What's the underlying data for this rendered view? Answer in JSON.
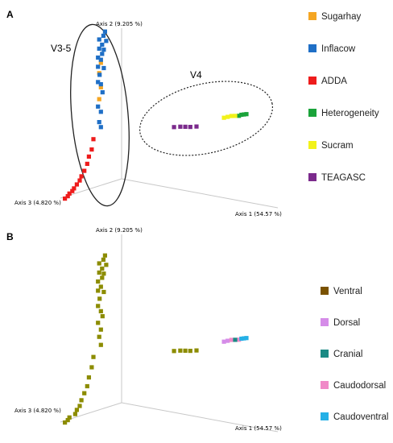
{
  "chart_data": [
    {
      "type": "scatter",
      "panel_label": "A",
      "axes": [
        "Axis 1 (54.57 %)",
        "Axis 2 (9.205 %)",
        "Axis 3 (4.820 %)"
      ],
      "group_labels": [
        "V3-5",
        "V4"
      ],
      "legend": [
        {
          "name": "Sugarhay",
          "color": "#f5a623"
        },
        {
          "name": "Inflacow",
          "color": "#1f6fc6"
        },
        {
          "name": "ADDA",
          "color": "#ee1c1c"
        },
        {
          "name": "Heterogeneity",
          "color": "#1aa33a"
        },
        {
          "name": "Sucram",
          "color": "#f2f21a"
        },
        {
          "name": "TEAGASC",
          "color": "#7b2a8c"
        }
      ],
      "series": [
        {
          "name": "Sugarhay",
          "points": [
            [
              -0.05,
              0.78,
              0.05
            ],
            [
              -0.04,
              0.72,
              0.06
            ],
            [
              -0.05,
              0.62,
              0.05
            ],
            [
              -0.04,
              0.55,
              0.06
            ]
          ]
        },
        {
          "name": "Inflacow",
          "points": [
            [
              -0.04,
              0.98,
              0.04
            ],
            [
              -0.03,
              0.96,
              0.05
            ],
            [
              -0.04,
              0.94,
              0.06
            ],
            [
              -0.03,
              0.92,
              0.04
            ],
            [
              -0.04,
              0.9,
              0.05
            ],
            [
              -0.04,
              0.88,
              0.06
            ],
            [
              -0.05,
              0.86,
              0.04
            ],
            [
              -0.04,
              0.84,
              0.05
            ],
            [
              -0.05,
              0.82,
              0.06
            ],
            [
              -0.05,
              0.8,
              0.05
            ],
            [
              -0.05,
              0.76,
              0.06
            ],
            [
              -0.05,
              0.74,
              0.04
            ],
            [
              -0.06,
              0.7,
              0.05
            ],
            [
              -0.05,
              0.66,
              0.06
            ],
            [
              -0.05,
              0.64,
              0.05
            ],
            [
              -0.06,
              0.58,
              0.04
            ],
            [
              -0.05,
              0.5,
              0.06
            ],
            [
              -0.05,
              0.46,
              0.05
            ],
            [
              -0.04,
              0.4,
              0.06
            ],
            [
              -0.05,
              0.36,
              0.05
            ]
          ]
        },
        {
          "name": "ADDA",
          "points": [
            [
              -0.04,
              0.3,
              0.08
            ],
            [
              -0.03,
              0.24,
              0.09
            ],
            [
              -0.03,
              0.2,
              0.1
            ],
            [
              -0.02,
              0.16,
              0.11
            ],
            [
              -0.02,
              0.12,
              0.12
            ],
            [
              -0.02,
              0.09,
              0.13
            ],
            [
              -0.01,
              0.07,
              0.14
            ],
            [
              -0.01,
              0.05,
              0.15
            ],
            [
              -0.01,
              0.03,
              0.16
            ],
            [
              0.0,
              0.02,
              0.17
            ],
            [
              0.0,
              0.01,
              0.18
            ],
            [
              0.01,
              0.0,
              0.19
            ],
            [
              0.01,
              -0.01,
              0.2
            ]
          ]
        },
        {
          "name": "Heterogeneity",
          "points": [
            [
              0.94,
              0.55,
              0.0
            ],
            [
              0.96,
              0.56,
              0.0
            ],
            [
              0.98,
              0.565,
              0.0
            ],
            [
              1.0,
              0.57,
              0.0
            ]
          ]
        },
        {
          "name": "Sucram",
          "points": [
            [
              0.82,
              0.52,
              0.0
            ],
            [
              0.85,
              0.53,
              0.0
            ],
            [
              0.88,
              0.54,
              0.0
            ],
            [
              0.91,
              0.545,
              0.0
            ]
          ]
        },
        {
          "name": "TEAGASC",
          "points": [
            [
              0.42,
              0.4,
              0.0
            ],
            [
              0.47,
              0.41,
              0.0
            ],
            [
              0.51,
              0.415,
              0.0
            ],
            [
              0.55,
              0.42,
              0.0
            ],
            [
              0.6,
              0.43,
              0.0
            ]
          ]
        }
      ]
    },
    {
      "type": "scatter",
      "panel_label": "B",
      "axes": [
        "Axis 1 (54.57 %)",
        "Axis 2 (9.205 %)",
        "Axis 3 (4.820 %)"
      ],
      "legend": [
        {
          "name": "Ventral",
          "color": "#7a5200"
        },
        {
          "name": "Dorsal",
          "color": "#d58ce8"
        },
        {
          "name": "Cranial",
          "color": "#1a8a84"
        },
        {
          "name": "Caudodorsal",
          "color": "#f08ac8"
        },
        {
          "name": "Caudoventral",
          "color": "#25b0e6"
        }
      ],
      "point_color": "#8c8c00",
      "points": [
        [
          -0.04,
          0.98,
          0.04
        ],
        [
          -0.03,
          0.96,
          0.05
        ],
        [
          -0.04,
          0.94,
          0.06
        ],
        [
          -0.03,
          0.92,
          0.04
        ],
        [
          -0.04,
          0.9,
          0.05
        ],
        [
          -0.04,
          0.88,
          0.06
        ],
        [
          -0.05,
          0.86,
          0.04
        ],
        [
          -0.04,
          0.84,
          0.05
        ],
        [
          -0.05,
          0.82,
          0.06
        ],
        [
          -0.05,
          0.78,
          0.05
        ],
        [
          -0.05,
          0.76,
          0.06
        ],
        [
          -0.05,
          0.74,
          0.04
        ],
        [
          -0.06,
          0.7,
          0.05
        ],
        [
          -0.05,
          0.66,
          0.06
        ],
        [
          -0.05,
          0.62,
          0.05
        ],
        [
          -0.06,
          0.58,
          0.04
        ],
        [
          -0.05,
          0.55,
          0.06
        ],
        [
          -0.05,
          0.5,
          0.05
        ],
        [
          -0.04,
          0.46,
          0.06
        ],
        [
          -0.05,
          0.4,
          0.05
        ],
        [
          -0.04,
          0.34,
          0.08
        ],
        [
          -0.03,
          0.28,
          0.09
        ],
        [
          -0.03,
          0.22,
          0.1
        ],
        [
          -0.02,
          0.17,
          0.11
        ],
        [
          -0.02,
          0.13,
          0.12
        ],
        [
          -0.02,
          0.09,
          0.13
        ],
        [
          -0.01,
          0.06,
          0.14
        ],
        [
          -0.01,
          0.04,
          0.15
        ],
        [
          0.0,
          0.02,
          0.16
        ],
        [
          0.0,
          0.01,
          0.18
        ],
        [
          0.01,
          0.0,
          0.19
        ],
        [
          0.01,
          -0.01,
          0.2
        ],
        [
          0.42,
          0.4,
          0.0
        ],
        [
          0.47,
          0.41,
          0.0
        ],
        [
          0.51,
          0.415,
          0.0
        ],
        [
          0.55,
          0.42,
          0.0
        ],
        [
          0.6,
          0.43,
          0.0
        ]
      ],
      "cluster_points": [
        {
          "name": "Dorsal",
          "points": [
            [
              0.82,
              0.52,
              0.0
            ],
            [
              0.85,
              0.53,
              0.0
            ]
          ]
        },
        {
          "name": "Caudodorsal",
          "points": [
            [
              0.88,
              0.54,
              0.0
            ],
            [
              0.94,
              0.55,
              0.0
            ]
          ]
        },
        {
          "name": "Cranial",
          "points": [
            [
              0.91,
              0.545,
              0.0
            ]
          ]
        },
        {
          "name": "Caudoventral",
          "points": [
            [
              0.96,
              0.56,
              0.0
            ],
            [
              0.98,
              0.565,
              0.0
            ],
            [
              1.0,
              0.57,
              0.0
            ]
          ]
        }
      ]
    }
  ]
}
